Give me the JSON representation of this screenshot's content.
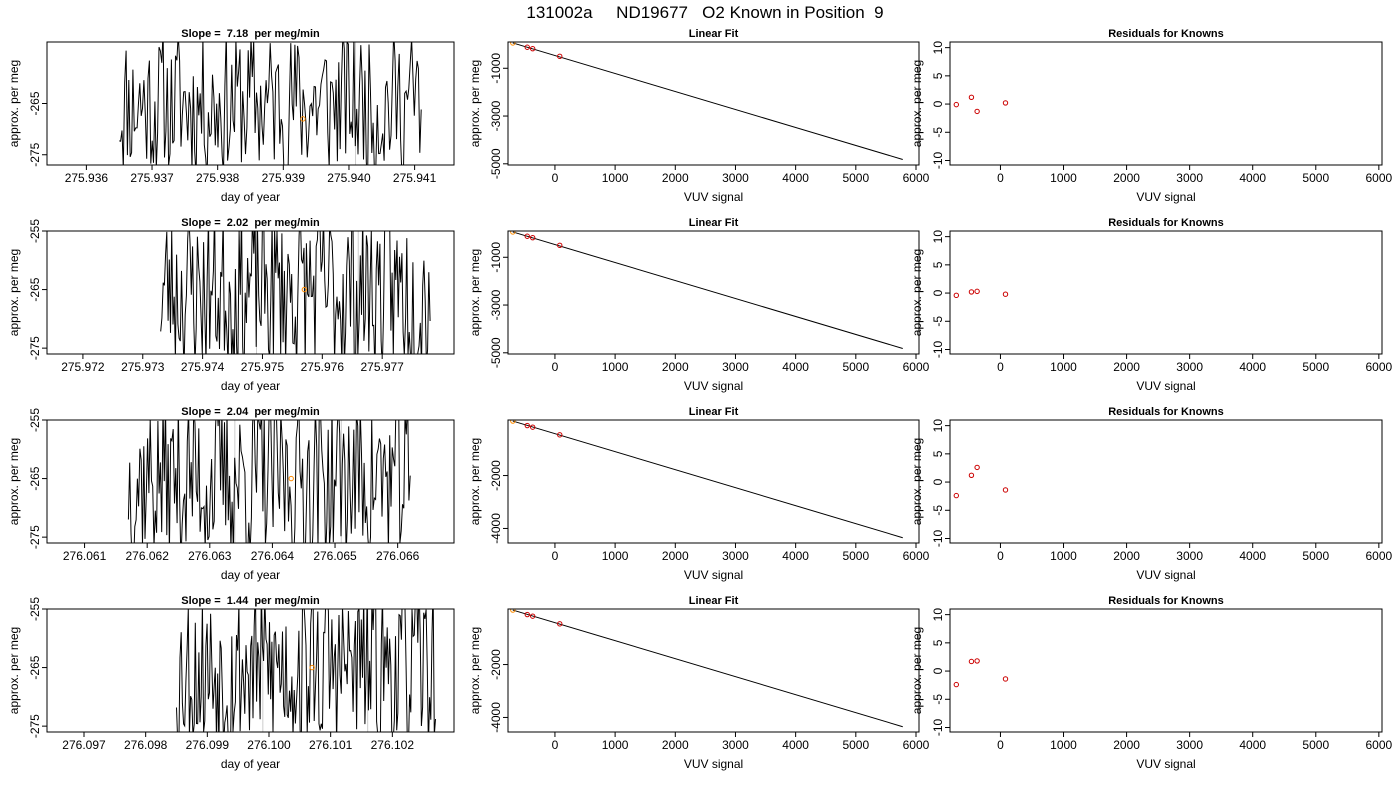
{
  "figure_title": "131002a     ND19677   O2 Known in Position  9",
  "colors": {
    "trace": "#000000",
    "known_point": "#cc0000",
    "current_point": "#ff8c00",
    "marker_line": "#cccccc",
    "fit_line": "#000000"
  },
  "chart_data": [
    {
      "row": 1,
      "timeseries": {
        "type": "line",
        "title": "Slope =  7.18  per meg/min",
        "xlabel": "day of year",
        "ylabel": "approx. per meg",
        "xlim": [
          275.9354,
          275.9416
        ],
        "ylim": [
          -277,
          -253
        ],
        "xticks": [
          "275.936",
          "275.937",
          "275.938",
          "275.939",
          "275.940",
          "275.941"
        ],
        "yticks": [
          "-265",
          "-275"
        ],
        "data_start": 275.9365,
        "data_end": 275.9411,
        "markers_x": [
          275.9401
        ],
        "highlight": {
          "x": 275.9393,
          "y": -268
        },
        "seed": 11
      },
      "fit": {
        "type": "line",
        "title": "Linear Fit",
        "xlabel": "VUV signal",
        "ylabel": "approx. per meg",
        "xlim": [
          -780,
          6050
        ],
        "ylim": [
          -5050,
          100
        ],
        "xticks": [
          "0",
          "1000",
          "2000",
          "3000",
          "4000",
          "5000",
          "6000"
        ],
        "yticks": [
          "-1000",
          "-3000",
          "-5000"
        ],
        "line": {
          "x": [
            -700,
            5780
          ],
          "y": [
            60,
            -4820
          ]
        },
        "points": [
          {
            "x": -700,
            "y": 60,
            "current": true
          },
          {
            "x": -460,
            "y": -120
          },
          {
            "x": -370,
            "y": -180
          },
          {
            "x": 80,
            "y": -500
          }
        ]
      },
      "residuals": {
        "type": "scatter",
        "title": "Residuals for Knowns",
        "xlabel": "VUV signal",
        "ylabel": "approx. per meg",
        "xlim": [
          -800,
          6050
        ],
        "ylim": [
          -10.8,
          11
        ],
        "xticks": [
          "0",
          "1000",
          "2000",
          "3000",
          "4000",
          "5000",
          "6000"
        ],
        "yticks": [
          "10",
          "5",
          "0",
          "-5",
          "-10"
        ],
        "points": [
          {
            "x": -700,
            "y": -0.1
          },
          {
            "x": -460,
            "y": 1.2
          },
          {
            "x": -370,
            "y": -1.3
          },
          {
            "x": 80,
            "y": 0.2
          }
        ]
      }
    },
    {
      "row": 2,
      "timeseries": {
        "type": "line",
        "title": "Slope =  2.02  per meg/min",
        "xlabel": "day of year",
        "ylabel": "approx. per meg",
        "xlim": [
          275.9714,
          275.9782
        ],
        "ylim": [
          -276,
          -255
        ],
        "xticks": [
          "275.972",
          "275.973",
          "275.974",
          "275.975",
          "275.976",
          "275.977"
        ],
        "yticks": [
          "-255",
          "-265",
          "-275"
        ],
        "data_start": 275.9733,
        "data_end": 275.9778,
        "markers_x": [
          275.9749,
          275.9766
        ],
        "highlight": {
          "x": 275.9757,
          "y": -265
        },
        "seed": 23
      },
      "fit": {
        "type": "line",
        "title": "Linear Fit",
        "xlabel": "VUV signal",
        "ylabel": "approx. per meg",
        "xlim": [
          -780,
          6050
        ],
        "ylim": [
          -5050,
          100
        ],
        "xticks": [
          "0",
          "1000",
          "2000",
          "3000",
          "4000",
          "5000",
          "6000"
        ],
        "yticks": [
          "-1000",
          "-3000",
          "-5000"
        ],
        "line": {
          "x": [
            -700,
            5780
          ],
          "y": [
            60,
            -4820
          ]
        },
        "points": [
          {
            "x": -700,
            "y": 60,
            "current": true
          },
          {
            "x": -460,
            "y": -120
          },
          {
            "x": -370,
            "y": -180
          },
          {
            "x": 80,
            "y": -500
          }
        ]
      },
      "residuals": {
        "type": "scatter",
        "title": "Residuals for Knowns",
        "xlabel": "VUV signal",
        "ylabel": "approx. per meg",
        "xlim": [
          -800,
          6050
        ],
        "ylim": [
          -10.8,
          11
        ],
        "xticks": [
          "0",
          "1000",
          "2000",
          "3000",
          "4000",
          "5000",
          "6000"
        ],
        "yticks": [
          "10",
          "5",
          "0",
          "-5",
          "-10"
        ],
        "points": [
          {
            "x": -700,
            "y": -0.4
          },
          {
            "x": -460,
            "y": 0.2
          },
          {
            "x": -370,
            "y": 0.3
          },
          {
            "x": 80,
            "y": -0.2
          }
        ]
      }
    },
    {
      "row": 3,
      "timeseries": {
        "type": "line",
        "title": "Slope =  2.04  per meg/min",
        "xlabel": "day of year",
        "ylabel": "approx. per meg",
        "xlim": [
          276.0604,
          276.0669
        ],
        "ylim": [
          -276,
          -255
        ],
        "xticks": [
          "276.061",
          "276.062",
          "276.063",
          "276.064",
          "276.065",
          "276.066"
        ],
        "yticks": [
          "-255",
          "-265",
          "-275"
        ],
        "data_start": 276.0617,
        "data_end": 276.0662,
        "markers_x": [
          276.0634,
          276.0651
        ],
        "highlight": {
          "x": 276.0643,
          "y": -265
        },
        "seed": 37
      },
      "fit": {
        "type": "line",
        "title": "Linear Fit",
        "xlabel": "VUV signal",
        "ylabel": "approx. per meg",
        "xlim": [
          -780,
          6050
        ],
        "ylim": [
          -4550,
          100
        ],
        "xticks": [
          "0",
          "1000",
          "2000",
          "3000",
          "4000",
          "5000",
          "6000"
        ],
        "yticks": [
          "-2000",
          "-4000"
        ],
        "line": {
          "x": [
            -700,
            5780
          ],
          "y": [
            60,
            -4350
          ]
        },
        "points": [
          {
            "x": -700,
            "y": 60,
            "current": true
          },
          {
            "x": -460,
            "y": -110
          },
          {
            "x": -370,
            "y": -170
          },
          {
            "x": 80,
            "y": -460
          }
        ]
      },
      "residuals": {
        "type": "scatter",
        "title": "Residuals for Knowns",
        "xlabel": "VUV signal",
        "ylabel": "approx. per meg",
        "xlim": [
          -800,
          6050
        ],
        "ylim": [
          -10.8,
          11
        ],
        "xticks": [
          "0",
          "1000",
          "2000",
          "3000",
          "4000",
          "5000",
          "6000"
        ],
        "yticks": [
          "10",
          "5",
          "0",
          "-5",
          "-10"
        ],
        "points": [
          {
            "x": -700,
            "y": -2.4
          },
          {
            "x": -460,
            "y": 1.2
          },
          {
            "x": -370,
            "y": 2.6
          },
          {
            "x": 80,
            "y": -1.4
          }
        ]
      }
    },
    {
      "row": 4,
      "timeseries": {
        "type": "line",
        "title": "Slope =  1.44  per meg/min",
        "xlabel": "day of year",
        "ylabel": "approx. per meg",
        "xlim": [
          276.0964,
          276.103
        ],
        "ylim": [
          -276,
          -255
        ],
        "xticks": [
          "276.097",
          "276.098",
          "276.099",
          "276.100",
          "276.101",
          "276.102"
        ],
        "yticks": [
          "-255",
          "-265",
          "-275"
        ],
        "data_start": 276.0985,
        "data_end": 276.1027,
        "markers_x": [
          276.0999,
          276.1016
        ],
        "highlight": {
          "x": 276.1007,
          "y": -265
        },
        "seed": 53
      },
      "fit": {
        "type": "line",
        "title": "Linear Fit",
        "xlabel": "VUV signal",
        "ylabel": "approx. per meg",
        "xlim": [
          -780,
          6050
        ],
        "ylim": [
          -4550,
          100
        ],
        "xticks": [
          "0",
          "1000",
          "2000",
          "3000",
          "4000",
          "5000",
          "6000"
        ],
        "yticks": [
          "-2000",
          "-4000"
        ],
        "line": {
          "x": [
            -700,
            5780
          ],
          "y": [
            60,
            -4350
          ]
        },
        "points": [
          {
            "x": -700,
            "y": 60,
            "current": true
          },
          {
            "x": -460,
            "y": -110
          },
          {
            "x": -370,
            "y": -170
          },
          {
            "x": 80,
            "y": -460
          }
        ]
      },
      "residuals": {
        "type": "scatter",
        "title": "Residuals for Knowns",
        "xlabel": "VUV signal",
        "ylabel": "approx. per meg",
        "xlim": [
          -800,
          6050
        ],
        "ylim": [
          -10.8,
          11
        ],
        "xticks": [
          "0",
          "1000",
          "2000",
          "3000",
          "4000",
          "5000",
          "6000"
        ],
        "yticks": [
          "10",
          "5",
          "0",
          "-5",
          "-10"
        ],
        "points": [
          {
            "x": -700,
            "y": -2.4
          },
          {
            "x": -460,
            "y": 1.7
          },
          {
            "x": -370,
            "y": 1.8
          },
          {
            "x": 80,
            "y": -1.4
          }
        ]
      }
    }
  ]
}
